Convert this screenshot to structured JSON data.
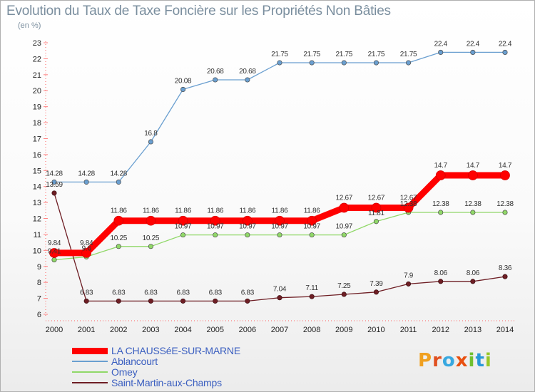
{
  "header": {
    "title": "Evolution du Taux de Taxe Foncière sur les Propriétés Non Bâties",
    "unit": "(en %)"
  },
  "logo": {
    "letters": [
      "P",
      "r",
      "o",
      "x",
      "i",
      "t",
      "i"
    ],
    "colors": [
      "#f0a020",
      "#e05020",
      "#38a8e0",
      "#e85010",
      "#70c030",
      "#2898d8",
      "#98c828"
    ]
  },
  "chart_data": {
    "type": "line",
    "title": "Evolution du Taux de Taxe Foncière sur les Propriétés Non Bâties",
    "ylabel": "(en %)",
    "xlabel": "",
    "x": [
      "2000",
      "2001",
      "2002",
      "2003",
      "2004",
      "2005",
      "2006",
      "2007",
      "2008",
      "2009",
      "2010",
      "2011",
      "2012",
      "2013",
      "2014"
    ],
    "ylim": [
      6,
      23
    ],
    "yticks": [
      "6",
      "7",
      "8",
      "9",
      "10",
      "11",
      "12",
      "13",
      "14",
      "15",
      "16",
      "17",
      "18",
      "19",
      "20",
      "21",
      "22",
      "23"
    ],
    "grid": false,
    "legend": "bottom",
    "series": [
      {
        "name": "LA CHAUSSéE-SUR-MARNE",
        "color": "#ff0000",
        "width": 9,
        "values": [
          9.84,
          9.84,
          11.86,
          11.86,
          11.86,
          11.86,
          11.86,
          11.86,
          11.86,
          12.67,
          12.67,
          12.67,
          14.7,
          14.7,
          14.7
        ],
        "labels": [
          "9.84",
          "9.84",
          "11.86",
          "11.86",
          "11.86",
          "11.86",
          "11.86",
          "11.86",
          "11.86",
          "12.67",
          "12.67",
          "12.67",
          "14.7",
          "14.7",
          "14.7"
        ]
      },
      {
        "name": "Ablancourt",
        "color": "#6a9fd0",
        "width": 1.3,
        "values": [
          14.28,
          14.28,
          14.28,
          16.8,
          20.08,
          20.68,
          20.68,
          21.75,
          21.75,
          21.75,
          21.75,
          21.75,
          22.4,
          22.4,
          22.4
        ],
        "labels": [
          "14.28",
          "14.28",
          "14.28",
          "16.8",
          "20.08",
          "20.68",
          "20.68",
          "21.75",
          "21.75",
          "21.75",
          "21.75",
          "21.75",
          "22.4",
          "22.4",
          "22.4"
        ]
      },
      {
        "name": "Omey",
        "color": "#90d868",
        "width": 1.3,
        "values": [
          9.41,
          9.6,
          10.25,
          10.25,
          10.97,
          10.97,
          10.97,
          10.97,
          10.97,
          10.97,
          11.81,
          12.38,
          12.38,
          12.38,
          12.38
        ],
        "labels": [
          "9.41",
          "9.6",
          "10.25",
          "10.25",
          "10.97",
          "10.97",
          "10.97",
          "10.97",
          "10.97",
          "10.97",
          "11.81",
          "12.38",
          "12.38",
          "12.38",
          "12.38"
        ]
      },
      {
        "name": "Saint-Martin-aux-Champs",
        "color": "#6e1e24",
        "width": 1.3,
        "values": [
          13.59,
          6.83,
          6.83,
          6.83,
          6.83,
          6.83,
          6.83,
          7.04,
          7.11,
          7.25,
          7.39,
          7.9,
          8.06,
          8.06,
          8.36
        ],
        "labels": [
          "13.59",
          "6.83",
          "6.83",
          "6.83",
          "6.83",
          "6.83",
          "6.83",
          "7.04",
          "7.11",
          "7.25",
          "7.39",
          "7.9",
          "8.06",
          "8.06",
          "8.36"
        ]
      }
    ]
  }
}
